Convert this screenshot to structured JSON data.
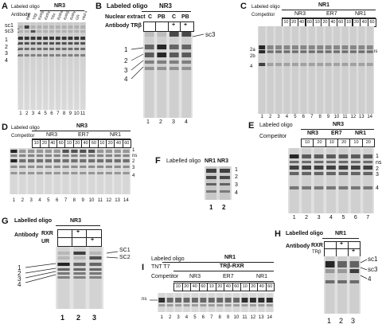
{
  "panels": {
    "A": {
      "letter": "A",
      "oligo_label": "Labeled oligo",
      "oligo": "NR3",
      "antibody_label": "Antibody",
      "antibodies": [
        "RXR",
        "TRβ",
        "RXRβ",
        "RXRγ",
        "TRα",
        "RARα",
        "RARβ",
        "RARγ",
        "GR",
        "HNF4"
      ],
      "bands": [
        "sc1",
        "sc3",
        "1",
        "2",
        "3",
        "4"
      ],
      "lanes": [
        "1",
        "2",
        "3",
        "4",
        "5",
        "6",
        "7",
        "8",
        "9",
        "10",
        "11"
      ]
    },
    "B": {
      "letter": "B",
      "oligo_label": "Labeled oligo",
      "oligo": "NR3",
      "extract_label": "Nuclear extract",
      "extracts": [
        "C",
        "PB",
        "C",
        "PB"
      ],
      "antibody_label": "Antibody TRβ",
      "antibody_marks": [
        "",
        "",
        "+",
        "+"
      ],
      "bands_left": [
        "1",
        "2",
        "3",
        "4"
      ],
      "band_right": "sc3",
      "lanes": [
        "1",
        "2",
        "3",
        "4"
      ]
    },
    "C": {
      "letter": "C",
      "oligo_label": "Labeled oligo",
      "oligo": "NR1",
      "competitor_label": "Competitor",
      "groups": [
        "NR3",
        "ER7",
        "NR1"
      ],
      "amounts": [
        "10",
        "20",
        "40",
        "60",
        "10",
        "20",
        "40",
        "60",
        "10",
        "20",
        "40",
        "60"
      ],
      "bands_left": [
        "2a",
        "2b",
        "4"
      ],
      "band_right": "ns",
      "lanes": [
        "1",
        "2",
        "3",
        "4",
        "5",
        "6",
        "7",
        "8",
        "9",
        "10",
        "11",
        "12",
        "13",
        "14"
      ]
    },
    "D": {
      "letter": "D",
      "oligo_label": "Labeled oligo",
      "oligo": "NR3",
      "competitor_label": "Competitor",
      "groups": [
        "NR3",
        "ER7",
        "NR1"
      ],
      "amounts": [
        "10",
        "20",
        "40",
        "60",
        "10",
        "20",
        "40",
        "60",
        "10",
        "20",
        "40",
        "60"
      ],
      "bands_right": [
        "1",
        "ns",
        "2",
        "3",
        "4"
      ],
      "lanes": [
        "1",
        "2",
        "3",
        "4",
        "5",
        "6",
        "7",
        "8",
        "9",
        "10",
        "11",
        "12",
        "13",
        "14"
      ]
    },
    "E": {
      "letter": "E",
      "oligo_label": "Labeled oligo",
      "oligo": "NR3",
      "competitor_label": "Competitor",
      "groups": [
        "NR3",
        "ER7",
        "NR1"
      ],
      "amounts": [
        "10",
        "20",
        "10",
        "20",
        "10",
        "20"
      ],
      "bands_right": [
        "1",
        "ns",
        "2",
        "3",
        "4"
      ],
      "lanes": [
        "1",
        "2",
        "3",
        "4",
        "5",
        "6",
        "7"
      ]
    },
    "F": {
      "letter": "F",
      "oligo_label": "Labelled oligo",
      "oligos": [
        "NR1",
        "NR3"
      ],
      "bands_right": [
        "1",
        "2",
        "3",
        "4"
      ],
      "lanes": [
        "1",
        "2"
      ]
    },
    "G": {
      "letter": "G",
      "oligo_label": "Labelled oligo",
      "oligo": "NR3",
      "antibody_label": "Antibody",
      "rows": [
        "RXR",
        "UR"
      ],
      "marks": [
        "+",
        "+"
      ],
      "bands_left": [
        "1",
        "2",
        "3",
        "4"
      ],
      "bands_right": [
        "SC1",
        "SC2"
      ],
      "lanes": [
        "1",
        "2",
        "3"
      ]
    },
    "H": {
      "letter": "H",
      "oligo_label": "Labelled oligo",
      "oligo": "NR1",
      "antibody_label": "Antibody",
      "rows": [
        "RXR",
        "TRβ"
      ],
      "marks": [
        "+",
        "+"
      ],
      "bands_right": [
        "sc1",
        "sc3",
        "4"
      ],
      "lanes": [
        "1",
        "2",
        "3"
      ]
    },
    "I": {
      "letter": "I",
      "oligo_label": "Labeled oligo",
      "oligo": "NR1",
      "tnt_label": "TNT T7",
      "tnt": "TRβ-RXR",
      "competitor_label": "Competitor",
      "groups": [
        "NR3",
        "ER7",
        "NR1"
      ],
      "amounts": [
        "10",
        "20",
        "40",
        "60",
        "10",
        "20",
        "40",
        "60",
        "10",
        "20",
        "40",
        "60"
      ],
      "band_left": "ns",
      "lanes": [
        "1",
        "2",
        "3",
        "4",
        "5",
        "6",
        "7",
        "8",
        "9",
        "10",
        "11",
        "12",
        "13",
        "14"
      ]
    }
  }
}
